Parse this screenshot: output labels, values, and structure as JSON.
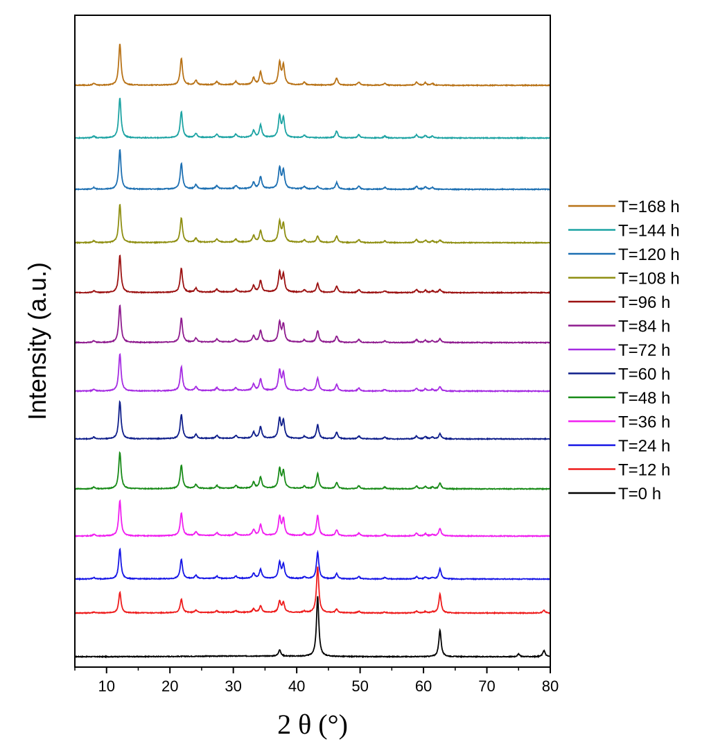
{
  "chart_data": {
    "type": "line",
    "title": "",
    "xlabel": "2 θ (°)",
    "ylabel": "Intensity (a.u.)",
    "xlim": [
      5,
      80
    ],
    "xticks": [
      10,
      20,
      30,
      40,
      50,
      60,
      70,
      80
    ],
    "grid": false,
    "legend_position": "right",
    "layout": "stacked (vertically offset traces)",
    "baseline_peaks": {
      "description": "Peak positions (2θ, degrees) and relative heights shared by traces T=12 h ... T=168 h",
      "peaks": [
        {
          "x": 8.0,
          "h": 0.03
        },
        {
          "x": 12.1,
          "h": 0.65
        },
        {
          "x": 21.8,
          "h": 0.42
        },
        {
          "x": 24.1,
          "h": 0.07
        },
        {
          "x": 27.4,
          "h": 0.05
        },
        {
          "x": 30.4,
          "h": 0.05
        },
        {
          "x": 33.2,
          "h": 0.11
        },
        {
          "x": 34.3,
          "h": 0.2
        },
        {
          "x": 37.3,
          "h": 0.34
        },
        {
          "x": 37.9,
          "h": 0.3
        },
        {
          "x": 41.2,
          "h": 0.04
        },
        {
          "x": 46.3,
          "h": 0.11
        },
        {
          "x": 49.8,
          "h": 0.05
        },
        {
          "x": 53.9,
          "h": 0.03
        },
        {
          "x": 58.9,
          "h": 0.05
        },
        {
          "x": 60.3,
          "h": 0.04
        },
        {
          "x": 61.4,
          "h": 0.03
        }
      ]
    },
    "series": [
      {
        "name": "T=0 h",
        "color": "#000000",
        "peaks": [
          {
            "x": 37.3,
            "h": 0.1
          },
          {
            "x": 43.3,
            "h": 0.95
          },
          {
            "x": 62.6,
            "h": 0.42
          },
          {
            "x": 75.0,
            "h": 0.04
          },
          {
            "x": 79.0,
            "h": 0.1
          }
        ]
      },
      {
        "name": "T=12 h",
        "color": "#ee1b1b",
        "scale": 0.5,
        "extra_peaks": [
          {
            "x": 43.3,
            "h": 0.72
          },
          {
            "x": 62.6,
            "h": 0.3
          },
          {
            "x": 79.0,
            "h": 0.04
          }
        ]
      },
      {
        "name": "T=24 h",
        "color": "#1515e6",
        "scale": 0.72,
        "extra_peaks": [
          {
            "x": 43.3,
            "h": 0.42
          },
          {
            "x": 62.6,
            "h": 0.16
          }
        ]
      },
      {
        "name": "T=36 h",
        "color": "#f01ef0",
        "scale": 0.85,
        "extra_peaks": [
          {
            "x": 43.3,
            "h": 0.32
          },
          {
            "x": 62.6,
            "h": 0.12
          }
        ]
      },
      {
        "name": "T=48 h",
        "color": "#178a17",
        "scale": 0.88,
        "extra_peaks": [
          {
            "x": 43.3,
            "h": 0.24
          },
          {
            "x": 62.6,
            "h": 0.09
          }
        ]
      },
      {
        "name": "T=60 h",
        "color": "#0d1d8a",
        "scale": 0.9,
        "extra_peaks": [
          {
            "x": 43.3,
            "h": 0.22
          },
          {
            "x": 62.6,
            "h": 0.08
          }
        ]
      },
      {
        "name": "T=72 h",
        "color": "#a52be2",
        "scale": 0.9,
        "extra_peaks": [
          {
            "x": 43.3,
            "h": 0.2
          },
          {
            "x": 62.6,
            "h": 0.07
          }
        ]
      },
      {
        "name": "T=84 h",
        "color": "#8e1a8e",
        "scale": 0.9,
        "extra_peaks": [
          {
            "x": 43.3,
            "h": 0.18
          },
          {
            "x": 62.6,
            "h": 0.06
          }
        ]
      },
      {
        "name": "T=96 h",
        "color": "#9b1010",
        "scale": 0.9,
        "extra_peaks": [
          {
            "x": 43.3,
            "h": 0.14
          },
          {
            "x": 62.6,
            "h": 0.05
          }
        ]
      },
      {
        "name": "T=108 h",
        "color": "#8e8e10",
        "scale": 0.92,
        "extra_peaks": [
          {
            "x": 43.3,
            "h": 0.1
          },
          {
            "x": 62.6,
            "h": 0.04
          }
        ]
      },
      {
        "name": "T=120 h",
        "color": "#1c6fb2",
        "scale": 0.95,
        "extra_peaks": [
          {
            "x": 43.3,
            "h": 0.04
          }
        ]
      },
      {
        "name": "T=144 h",
        "color": "#1ca3a3",
        "scale": 0.97,
        "extra_peaks": []
      },
      {
        "name": "T=168 h",
        "color": "#b87216",
        "scale": 1.0,
        "extra_peaks": []
      }
    ],
    "legend_order": [
      "T=168 h",
      "T=144 h",
      "T=120 h",
      "T=108 h",
      "T=96 h",
      "T=84 h",
      "T=72 h",
      "T=60 h",
      "T=48 h",
      "T=36 h",
      "T=24 h",
      "T=12 h",
      "T=0 h"
    ]
  }
}
